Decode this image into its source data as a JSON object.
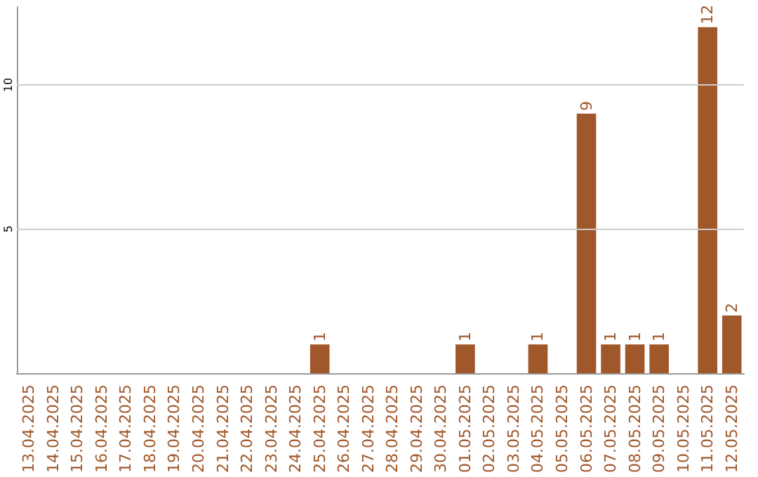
{
  "chart_data": {
    "type": "bar",
    "categories": [
      "13.04.2025",
      "14.04.2025",
      "15.04.2025",
      "16.04.2025",
      "17.04.2025",
      "18.04.2025",
      "19.04.2025",
      "20.04.2025",
      "21.04.2025",
      "22.04.2025",
      "23.04.2025",
      "24.04.2025",
      "25.04.2025",
      "26.04.2025",
      "27.04.2025",
      "28.04.2025",
      "29.04.2025",
      "30.04.2025",
      "01.05.2025",
      "02.05.2025",
      "03.05.2025",
      "04.05.2025",
      "05.05.2025",
      "06.05.2025",
      "07.05.2025",
      "08.05.2025",
      "09.05.2025",
      "10.05.2025",
      "11.05.2025",
      "12.05.2025"
    ],
    "values": [
      0,
      0,
      0,
      0,
      0,
      0,
      0,
      0,
      0,
      0,
      0,
      0,
      1,
      0,
      0,
      0,
      0,
      0,
      1,
      0,
      0,
      1,
      0,
      9,
      1,
      1,
      1,
      0,
      12,
      2
    ],
    "value_labels": [
      null,
      null,
      null,
      null,
      null,
      null,
      null,
      null,
      null,
      null,
      null,
      null,
      "1",
      null,
      null,
      null,
      null,
      null,
      "1",
      null,
      null,
      "1",
      null,
      "9",
      "1",
      "1",
      "1",
      null,
      "12",
      "2"
    ],
    "color": "#a0582a",
    "ylim": [
      0,
      12.7
    ],
    "yticks": [
      5,
      10
    ],
    "grid": "y"
  }
}
